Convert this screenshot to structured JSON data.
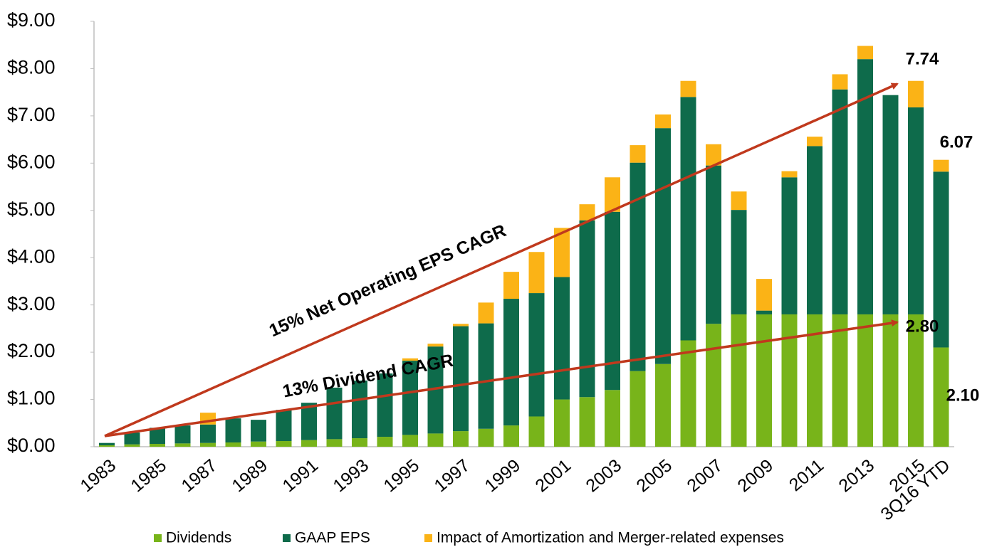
{
  "chart_data": {
    "type": "stacked-bar",
    "categories": [
      "1983",
      null,
      "1985",
      null,
      "1987",
      null,
      "1989",
      null,
      "1991",
      null,
      "1993",
      null,
      "1995",
      null,
      "1997",
      null,
      "1999",
      null,
      "2001",
      null,
      "2003",
      null,
      "2005",
      null,
      "2007",
      null,
      "2009",
      null,
      "2011",
      null,
      "2013",
      null,
      "2015",
      "3Q16 YTD"
    ],
    "series": [
      {
        "name": "Dividends",
        "color": "#78b41a",
        "values": [
          0.03,
          0.05,
          0.06,
          0.07,
          0.08,
          0.09,
          0.11,
          0.12,
          0.14,
          0.16,
          0.18,
          0.21,
          0.25,
          0.28,
          0.33,
          0.38,
          0.45,
          0.64,
          1.0,
          1.05,
          1.2,
          1.6,
          1.75,
          2.25,
          2.6,
          2.8,
          2.8,
          2.8,
          2.8,
          2.8,
          2.8,
          2.8,
          2.8,
          2.1
        ]
      },
      {
        "name": "GAAP EPS",
        "color": "#0e6b4b",
        "values": [
          0.05,
          0.25,
          0.34,
          0.38,
          0.39,
          0.51,
          0.46,
          0.66,
          0.79,
          1.09,
          1.22,
          1.34,
          1.57,
          1.84,
          2.22,
          2.23,
          2.68,
          2.61,
          2.59,
          3.74,
          3.77,
          4.41,
          4.99,
          5.15,
          3.35,
          2.21,
          0.08,
          2.9,
          3.56,
          4.76,
          5.4,
          4.64,
          4.38,
          3.72
        ]
      },
      {
        "name": "Impact of Amortization and Merger-related expenses",
        "color": "#fbb316",
        "values": [
          0,
          0,
          0,
          0,
          0.25,
          0,
          0,
          0,
          0,
          0,
          0,
          0,
          0.05,
          0.06,
          0.05,
          0.44,
          0.57,
          0.87,
          1.04,
          0.34,
          0.73,
          0.37,
          0.29,
          0.34,
          0.45,
          0.39,
          0.67,
          0.13,
          0.2,
          0.32,
          0.28,
          0,
          0.56,
          0.25
        ]
      }
    ],
    "ylim": [
      0,
      9
    ],
    "yticks": [
      {
        "value": 0,
        "label": "$0.00"
      },
      {
        "value": 1,
        "label": "$1.00"
      },
      {
        "value": 2,
        "label": "$2.00"
      },
      {
        "value": 3,
        "label": "$3.00"
      },
      {
        "value": 4,
        "label": "$4.00"
      },
      {
        "value": 5,
        "label": "$5.00"
      },
      {
        "value": 6,
        "label": "$6.00"
      },
      {
        "value": 7,
        "label": "$7.00"
      },
      {
        "value": 8,
        "label": "$8.00"
      },
      {
        "value": 9,
        "label": "$9.00"
      }
    ],
    "annotations": [
      "15% Net Operating EPS CAGR",
      "13% Dividend CAGR",
      "7.74",
      "6.07",
      "2.80",
      "2.10"
    ],
    "legend": "bottom"
  }
}
